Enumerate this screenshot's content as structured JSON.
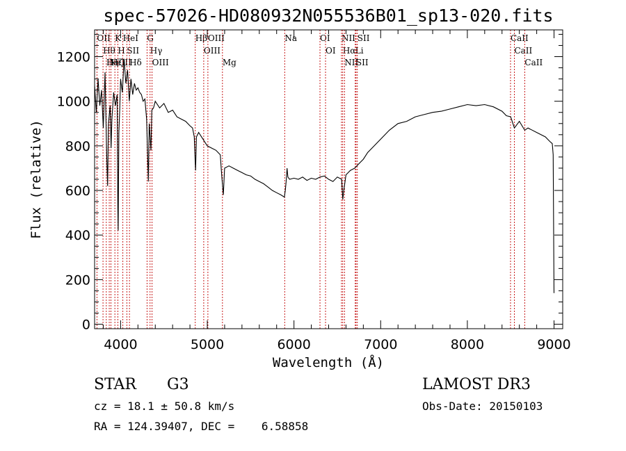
{
  "chart_data": {
    "type": "line",
    "title": "spec-57026-HD080932N055536B01_sp13-020.fits",
    "xlabel": "Wavelength (Å)",
    "ylabel": "Flux (relative)",
    "xlim": [
      3700,
      9100
    ],
    "ylim": [
      -20,
      1320
    ],
    "xticks": [
      4000,
      5000,
      6000,
      7000,
      8000,
      9000
    ],
    "yticks": [
      0,
      200,
      400,
      600,
      800,
      1000,
      1200
    ],
    "grid": false,
    "series": [
      {
        "points": [
          [
            3700,
            1070
          ],
          [
            3720,
            950
          ],
          [
            3740,
            1100
          ],
          [
            3760,
            980
          ],
          [
            3780,
            1050
          ],
          [
            3800,
            880
          ],
          [
            3820,
            1130
          ],
          [
            3840,
            760
          ],
          [
            3850,
            620
          ],
          [
            3860,
            900
          ],
          [
            3880,
            980
          ],
          [
            3890,
            790
          ],
          [
            3900,
            920
          ],
          [
            3920,
            1040
          ],
          [
            3940,
            980
          ],
          [
            3960,
            1030
          ],
          [
            3968,
            520
          ],
          [
            3972,
            420
          ],
          [
            3980,
            860
          ],
          [
            3990,
            960
          ],
          [
            4000,
            1100
          ],
          [
            4020,
            1040
          ],
          [
            4040,
            1190
          ],
          [
            4060,
            1080
          ],
          [
            4080,
            1140
          ],
          [
            4100,
            1000
          ],
          [
            4120,
            1100
          ],
          [
            4140,
            1030
          ],
          [
            4160,
            1080
          ],
          [
            4180,
            1050
          ],
          [
            4200,
            1060
          ],
          [
            4220,
            1040
          ],
          [
            4240,
            1030
          ],
          [
            4260,
            1000
          ],
          [
            4280,
            1010
          ],
          [
            4300,
            920
          ],
          [
            4310,
            780
          ],
          [
            4320,
            640
          ],
          [
            4330,
            900
          ],
          [
            4340,
            840
          ],
          [
            4350,
            780
          ],
          [
            4360,
            960
          ],
          [
            4380,
            970
          ],
          [
            4400,
            1000
          ],
          [
            4450,
            970
          ],
          [
            4500,
            990
          ],
          [
            4550,
            950
          ],
          [
            4600,
            960
          ],
          [
            4650,
            930
          ],
          [
            4700,
            920
          ],
          [
            4750,
            910
          ],
          [
            4800,
            890
          ],
          [
            4830,
            880
          ],
          [
            4850,
            840
          ],
          [
            4860,
            730
          ],
          [
            4865,
            690
          ],
          [
            4875,
            840
          ],
          [
            4900,
            860
          ],
          [
            4950,
            830
          ],
          [
            5000,
            800
          ],
          [
            5050,
            790
          ],
          [
            5100,
            780
          ],
          [
            5150,
            760
          ],
          [
            5160,
            700
          ],
          [
            5170,
            650
          ],
          [
            5185,
            580
          ],
          [
            5200,
            700
          ],
          [
            5250,
            710
          ],
          [
            5300,
            700
          ],
          [
            5350,
            690
          ],
          [
            5400,
            680
          ],
          [
            5450,
            670
          ],
          [
            5500,
            665
          ],
          [
            5550,
            650
          ],
          [
            5600,
            640
          ],
          [
            5650,
            630
          ],
          [
            5700,
            615
          ],
          [
            5750,
            600
          ],
          [
            5800,
            590
          ],
          [
            5850,
            580
          ],
          [
            5890,
            570
          ],
          [
            5896,
            590
          ],
          [
            5900,
            600
          ],
          [
            5910,
            640
          ],
          [
            5920,
            700
          ],
          [
            5930,
            660
          ],
          [
            5950,
            650
          ],
          [
            6000,
            655
          ],
          [
            6050,
            650
          ],
          [
            6100,
            660
          ],
          [
            6150,
            645
          ],
          [
            6200,
            655
          ],
          [
            6250,
            650
          ],
          [
            6300,
            660
          ],
          [
            6350,
            665
          ],
          [
            6400,
            650
          ],
          [
            6450,
            640
          ],
          [
            6500,
            660
          ],
          [
            6550,
            650
          ],
          [
            6563,
            560
          ],
          [
            6575,
            600
          ],
          [
            6600,
            670
          ],
          [
            6650,
            690
          ],
          [
            6700,
            700
          ],
          [
            6750,
            720
          ],
          [
            6800,
            740
          ],
          [
            6850,
            770
          ],
          [
            6900,
            790
          ],
          [
            6950,
            810
          ],
          [
            7000,
            830
          ],
          [
            7100,
            870
          ],
          [
            7200,
            900
          ],
          [
            7300,
            910
          ],
          [
            7400,
            930
          ],
          [
            7500,
            940
          ],
          [
            7600,
            950
          ],
          [
            7700,
            955
          ],
          [
            7800,
            965
          ],
          [
            7900,
            975
          ],
          [
            8000,
            985
          ],
          [
            8100,
            980
          ],
          [
            8200,
            985
          ],
          [
            8300,
            975
          ],
          [
            8400,
            955
          ],
          [
            8450,
            935
          ],
          [
            8500,
            930
          ],
          [
            8542,
            880
          ],
          [
            8600,
            910
          ],
          [
            8662,
            870
          ],
          [
            8700,
            880
          ],
          [
            8800,
            860
          ],
          [
            8900,
            840
          ],
          [
            8950,
            820
          ],
          [
            8980,
            810
          ],
          [
            8990,
            760
          ],
          [
            9000,
            140
          ]
        ]
      }
    ],
    "lines": [
      {
        "wl": 3727,
        "label": "OII"
      },
      {
        "wl": 3797,
        "label": "Hθ"
      },
      {
        "wl": 3835,
        "label": "Hη"
      },
      {
        "wl": 3869,
        "label": "NeIII"
      },
      {
        "wl": 3889,
        "label": "Hζ"
      },
      {
        "wl": 3934,
        "label": "K"
      },
      {
        "wl": 3968,
        "label": "H"
      },
      {
        "wl": 4026,
        "label": "HeI"
      },
      {
        "wl": 4072,
        "label": "SII"
      },
      {
        "wl": 4102,
        "label": "Hδ"
      },
      {
        "wl": 4305,
        "label": "G"
      },
      {
        "wl": 4340,
        "label": "Hγ"
      },
      {
        "wl": 4363,
        "label": "OIII"
      },
      {
        "wl": 4861,
        "label": "Hβ"
      },
      {
        "wl": 4959,
        "label": "OIII"
      },
      {
        "wl": 5007,
        "label": "OIII"
      },
      {
        "wl": 5175,
        "label": "Mg"
      },
      {
        "wl": 5893,
        "label": "Na"
      },
      {
        "wl": 6300,
        "label": "OI"
      },
      {
        "wl": 6364,
        "label": "OI"
      },
      {
        "wl": 6548,
        "label": "NII"
      },
      {
        "wl": 6563,
        "label": "Hα"
      },
      {
        "wl": 6583,
        "label": "NII"
      },
      {
        "wl": 6707,
        "label": "Li"
      },
      {
        "wl": 6716,
        "label": "SII"
      },
      {
        "wl": 6731,
        "label": "SII"
      },
      {
        "wl": 8498,
        "label": "CaII"
      },
      {
        "wl": 8542,
        "label": "CaII"
      },
      {
        "wl": 8662,
        "label": "CaII"
      }
    ],
    "line_color": "#c00000",
    "spectrum_color": "#000000"
  },
  "info": {
    "object_class": "STAR",
    "subclass": "G3",
    "survey": "LAMOST DR3",
    "redshift": "cz = 18.1 ± 50.8 km/s",
    "obs_date": "Obs-Date: 20150103",
    "coords": "RA = 124.39407, DEC =    6.58858"
  }
}
